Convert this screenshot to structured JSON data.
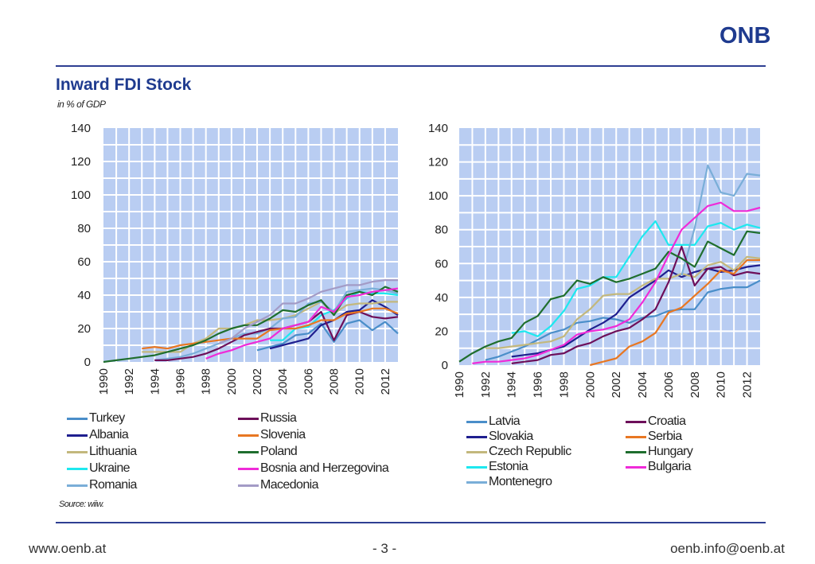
{
  "logo_text": "ONB",
  "header": {
    "title": "Inward FDI Stock",
    "subtitle": "in % of GDP"
  },
  "source": "Source: wiiw.",
  "footer": {
    "left": "www.oenb.at",
    "center": "- 3 -",
    "right": "oenb.info@oenb.at"
  },
  "colors": {
    "accent": "#2e3f92",
    "title": "#1f3b8f",
    "plot_bg": "#b9cdf2",
    "grid": "#ffffff"
  },
  "chart_data": [
    {
      "type": "line",
      "title": "",
      "xlabel": "",
      "ylabel": "in % of GDP",
      "ylim": [
        0,
        140
      ],
      "yticks": [
        0,
        20,
        40,
        60,
        80,
        100,
        120,
        140
      ],
      "xlim": [
        1990,
        2013
      ],
      "xticks": [
        1990,
        1992,
        1994,
        1996,
        1998,
        2000,
        2002,
        2004,
        2006,
        2008,
        2010,
        2012
      ],
      "x": [
        1990,
        1991,
        1992,
        1993,
        1994,
        1995,
        1996,
        1997,
        1998,
        1999,
        2000,
        2001,
        2002,
        2003,
        2004,
        2005,
        2006,
        2007,
        2008,
        2009,
        2010,
        2011,
        2012,
        2013
      ],
      "series": [
        {
          "name": "Turkey",
          "color": "#4a8ec9",
          "values": [
            null,
            null,
            null,
            null,
            null,
            null,
            null,
            null,
            null,
            null,
            null,
            null,
            7,
            9,
            11,
            16,
            17,
            23,
            12,
            23,
            25,
            19,
            24,
            17
          ]
        },
        {
          "name": "Albania",
          "color": "#1f1f8f",
          "values": [
            null,
            null,
            null,
            null,
            null,
            null,
            null,
            null,
            null,
            null,
            null,
            null,
            null,
            8,
            10,
            12,
            14,
            22,
            25,
            30,
            31,
            37,
            33,
            28
          ]
        },
        {
          "name": "Lithuania",
          "color": "#c3b87d",
          "values": [
            null,
            null,
            null,
            6,
            6,
            6,
            6,
            11,
            14,
            20,
            20,
            22,
            25,
            25,
            26,
            28,
            32,
            36,
            29,
            34,
            35,
            35,
            36,
            36
          ]
        },
        {
          "name": "Ukraine",
          "color": "#1ee8ef",
          "values": [
            null,
            null,
            null,
            null,
            null,
            null,
            null,
            null,
            null,
            null,
            null,
            null,
            null,
            13,
            13,
            20,
            21,
            28,
            31,
            38,
            42,
            41,
            41,
            40
          ]
        },
        {
          "name": "Romania",
          "color": "#7aaed8",
          "values": [
            null,
            null,
            null,
            null,
            1,
            2,
            3,
            5,
            8,
            11,
            14,
            17,
            17,
            20,
            26,
            27,
            35,
            36,
            30,
            42,
            43,
            44,
            43,
            41
          ]
        },
        {
          "name": "Russia",
          "color": "#6d0f5a",
          "values": [
            null,
            null,
            null,
            null,
            1,
            1,
            2,
            3,
            5,
            8,
            12,
            16,
            18,
            20,
            20,
            22,
            24,
            30,
            13,
            28,
            30,
            27,
            26,
            27
          ]
        },
        {
          "name": "Slovenia",
          "color": "#e87722",
          "values": [
            null,
            null,
            null,
            8,
            9,
            8,
            10,
            11,
            12,
            13,
            14,
            14,
            14,
            19,
            20,
            20,
            22,
            25,
            25,
            29,
            30,
            32,
            32,
            29
          ]
        },
        {
          "name": "Poland",
          "color": "#1f6e2e",
          "values": [
            0,
            1,
            2,
            3,
            4,
            6,
            8,
            10,
            13,
            17,
            20,
            22,
            22,
            26,
            31,
            30,
            34,
            37,
            28,
            40,
            42,
            40,
            45,
            42
          ]
        },
        {
          "name": "Bosnia and Herzegovina",
          "color": "#ef2bd8",
          "values": [
            null,
            null,
            null,
            null,
            null,
            null,
            null,
            null,
            2,
            5,
            7,
            10,
            12,
            14,
            20,
            22,
            24,
            33,
            30,
            39,
            40,
            42,
            43,
            44
          ]
        },
        {
          "name": "Macedonia",
          "color": "#a39bc6",
          "values": [
            null,
            null,
            null,
            null,
            null,
            null,
            null,
            null,
            null,
            11,
            14,
            20,
            24,
            28,
            35,
            35,
            38,
            42,
            44,
            46,
            46,
            48,
            49,
            49
          ]
        }
      ]
    },
    {
      "type": "line",
      "title": "",
      "xlabel": "",
      "ylabel": "in % of GDP",
      "ylim": [
        0,
        140
      ],
      "yticks": [
        0,
        20,
        40,
        60,
        80,
        100,
        120,
        140
      ],
      "xlim": [
        1990,
        2013
      ],
      "xticks": [
        1990,
        1992,
        1994,
        1996,
        1998,
        2000,
        2002,
        2004,
        2006,
        2008,
        2010,
        2012
      ],
      "x": [
        1990,
        1991,
        1992,
        1993,
        1994,
        1995,
        1996,
        1997,
        1998,
        1999,
        2000,
        2001,
        2002,
        2003,
        2004,
        2005,
        2006,
        2007,
        2008,
        2009,
        2010,
        2011,
        2012,
        2013
      ],
      "series": [
        {
          "name": "Latvia",
          "color": "#4a8ec9",
          "values": [
            null,
            null,
            3,
            5,
            8,
            11,
            15,
            19,
            21,
            25,
            26,
            28,
            27,
            25,
            28,
            29,
            32,
            33,
            33,
            43,
            45,
            46,
            46,
            50
          ]
        },
        {
          "name": "Slovakia",
          "color": "#1f1f8f",
          "values": [
            null,
            null,
            null,
            null,
            5,
            6,
            7,
            9,
            11,
            16,
            21,
            25,
            30,
            40,
            45,
            50,
            56,
            52,
            55,
            57,
            55,
            56,
            58,
            59
          ]
        },
        {
          "name": "Czech Republic",
          "color": "#c3b87d",
          "values": [
            null,
            null,
            10,
            10,
            11,
            12,
            13,
            14,
            17,
            27,
            33,
            41,
            42,
            42,
            47,
            51,
            51,
            54,
            52,
            59,
            61,
            56,
            64,
            63
          ]
        },
        {
          "name": "Estonia",
          "color": "#1ee8ef",
          "values": [
            null,
            null,
            null,
            null,
            19,
            20,
            17,
            23,
            32,
            45,
            47,
            52,
            52,
            64,
            76,
            85,
            71,
            71,
            71,
            82,
            84,
            80,
            83,
            81
          ]
        },
        {
          "name": "Montenegro",
          "color": "#7aaed8",
          "values": [
            null,
            null,
            null,
            null,
            null,
            null,
            null,
            null,
            null,
            null,
            null,
            null,
            null,
            null,
            null,
            null,
            null,
            53,
            81,
            118,
            102,
            100,
            113,
            112
          ]
        },
        {
          "name": "Croatia",
          "color": "#6d0f5a",
          "values": [
            null,
            null,
            null,
            null,
            1,
            2,
            3,
            6,
            7,
            11,
            13,
            17,
            20,
            22,
            27,
            33,
            49,
            70,
            47,
            57,
            58,
            53,
            55,
            54
          ]
        },
        {
          "name": "Serbia",
          "color": "#e87722",
          "values": [
            null,
            null,
            null,
            null,
            null,
            null,
            null,
            null,
            null,
            null,
            0,
            2,
            4,
            11,
            14,
            19,
            31,
            34,
            41,
            48,
            56,
            54,
            62,
            62
          ]
        },
        {
          "name": "Hungary",
          "color": "#1f6e2e",
          "values": [
            2,
            7,
            11,
            14,
            16,
            25,
            29,
            39,
            41,
            50,
            48,
            52,
            49,
            51,
            54,
            57,
            67,
            63,
            58,
            73,
            69,
            65,
            79,
            78
          ]
        },
        {
          "name": "Bulgaria",
          "color": "#ef2bd8",
          "values": [
            null,
            1,
            2,
            2,
            3,
            4,
            6,
            9,
            12,
            18,
            20,
            21,
            23,
            27,
            37,
            49,
            65,
            80,
            87,
            94,
            96,
            91,
            91,
            93
          ]
        }
      ]
    }
  ]
}
